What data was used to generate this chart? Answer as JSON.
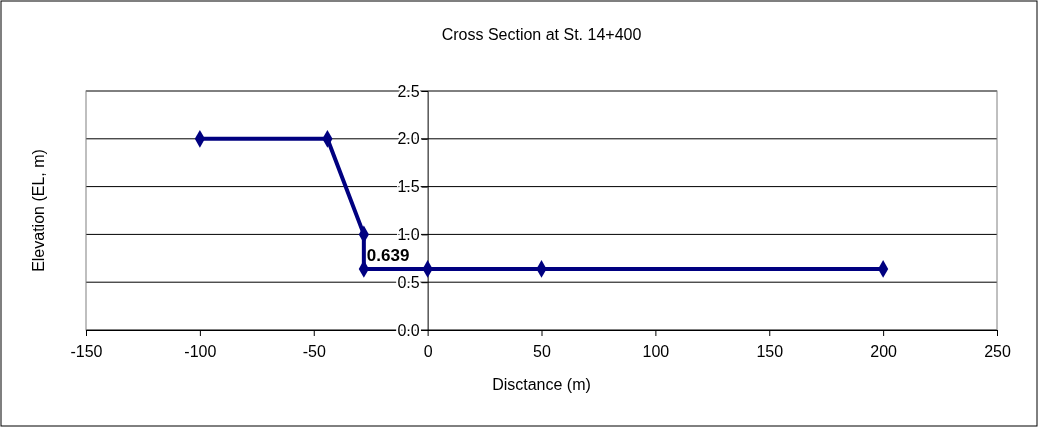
{
  "chart_data": {
    "type": "line",
    "title": "Cross Section at St. 14+400",
    "xlabel": "Disctance (m)",
    "ylabel": "Elevation (EL, m)",
    "x": [
      -100,
      -44,
      -28,
      -28,
      0,
      50,
      200
    ],
    "series": [
      {
        "color": "#000080",
        "values": [
          2.0,
          2.0,
          1.0,
          0.639,
          0.639,
          0.639,
          0.639
        ]
      }
    ],
    "xlim": [
      -150,
      250
    ],
    "xticks": [
      -150,
      -100,
      -50,
      0,
      50,
      100,
      150,
      200,
      250
    ],
    "ylim": [
      0,
      2.5
    ],
    "yticks": [
      {
        "value": 0,
        "label": "0.0"
      },
      {
        "value": 0.5,
        "label": "0.5"
      },
      {
        "value": 1,
        "label": "1.0"
      },
      {
        "value": 1.5,
        "label": "1.5"
      },
      {
        "value": 2,
        "label": "2.0"
      },
      {
        "value": 2.5,
        "label": "2.5"
      }
    ],
    "grid": "y",
    "marker": "diamond",
    "line_style": "solid",
    "annotations": [
      {
        "text": "0.639",
        "x": -28,
        "y": 0.639
      }
    ]
  }
}
